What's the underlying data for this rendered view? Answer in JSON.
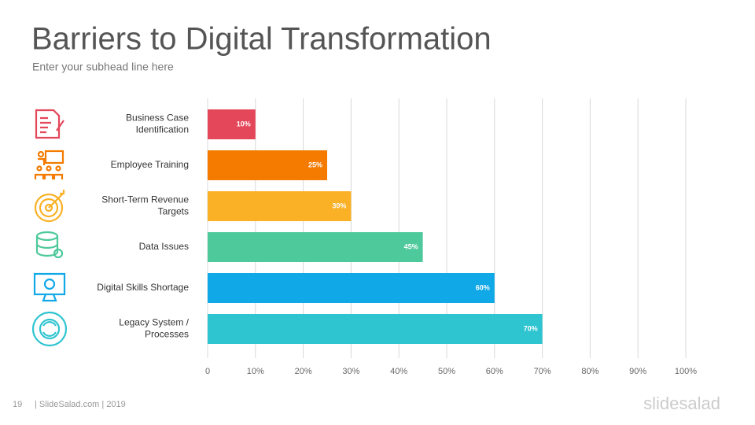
{
  "chart_data": {
    "type": "bar",
    "orientation": "horizontal",
    "title": "Barriers to Digital Transformation",
    "subtitle": "Enter your subhead line here",
    "categories": [
      "Business Case\nIdentification",
      "Employee Training",
      "Short-Term Revenue\nTargets",
      "Data Issues",
      "Digital Skills Shortage",
      "Legacy System /\nProcesses"
    ],
    "values": [
      10,
      25,
      30,
      45,
      60,
      70
    ],
    "value_labels": [
      "10%",
      "25%",
      "30%",
      "45%",
      "60%",
      "70%"
    ],
    "colors": [
      "#e4475a",
      "#f47a00",
      "#fbb126",
      "#4dc99b",
      "#11a8e8",
      "#2ec4d0"
    ],
    "xlim": [
      0,
      100
    ],
    "xticks": [
      0,
      {
        "value": 10,
        "label": "10%"
      },
      {
        "value": 20,
        "label": "20%"
      },
      {
        "value": 30,
        "label": "30%"
      },
      {
        "value": 40,
        "label": "40%"
      },
      {
        "value": 50,
        "label": "50%"
      },
      {
        "value": 60,
        "label": "60%"
      },
      {
        "value": 70,
        "label": "70%"
      },
      {
        "value": 80,
        "label": "80%"
      },
      {
        "value": 90,
        "label": "90%"
      },
      {
        "value": 100,
        "label": "100%"
      }
    ],
    "grid": true
  },
  "footer": {
    "page": "19",
    "text": "| SlideSalad.com | 2019",
    "logo": "slidesalad"
  }
}
